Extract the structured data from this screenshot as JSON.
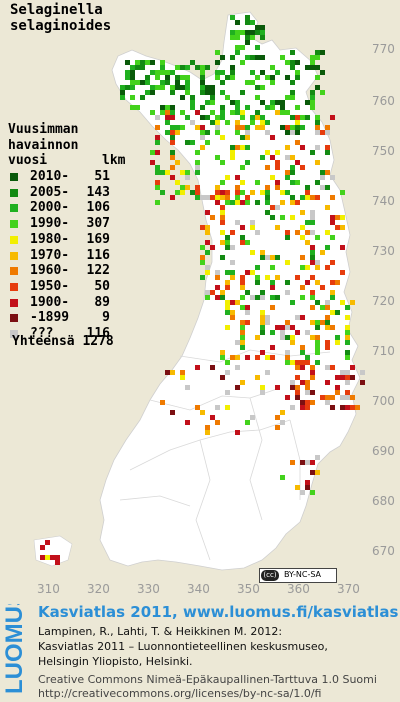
{
  "title": {
    "line1": "Selaginella",
    "line2": "selaginoides"
  },
  "legend": {
    "header": [
      "Vuusimman",
      "havainnon"
    ],
    "header3_left": "vuosi",
    "header3_right": "lkm",
    "rows": [
      {
        "period": "2010-",
        "count": "51",
        "color": "#0a5a0a"
      },
      {
        "period": "2005-",
        "count": "143",
        "color": "#138a13"
      },
      {
        "period": "2000-",
        "count": "106",
        "color": "#20b020"
      },
      {
        "period": "1990-",
        "count": "307",
        "color": "#43d21c"
      },
      {
        "period": "1980-",
        "count": "169",
        "color": "#f2ef00"
      },
      {
        "period": "1970-",
        "count": "116",
        "color": "#f7ba00"
      },
      {
        "period": "1960-",
        "count": "122",
        "color": "#ef7a00"
      },
      {
        "period": "1950-",
        "count": "50",
        "color": "#e63c0d"
      },
      {
        "period": "1900-",
        "count": "89",
        "color": "#c2101a"
      },
      {
        "period": "-1899",
        "count": "9",
        "color": "#7b0f12"
      },
      {
        "period": "???",
        "count": "116",
        "color": "#c8c8c8"
      }
    ],
    "total_label": "Yhteensä",
    "total_value": "1278"
  },
  "y_ticks": [
    "770",
    "760",
    "750",
    "740",
    "730",
    "720",
    "710",
    "700",
    "690",
    "680",
    "670"
  ],
  "x_ticks": [
    "310",
    "320",
    "330",
    "340",
    "350",
    "360",
    "370"
  ],
  "license_badge": "BY-NC-SA",
  "footer": {
    "logo_text": "LUOMUS",
    "headline": "Kasviatlas 2011, www.luomus.fi/kasviatlas",
    "citation_line1": "Lampinen, R., Lahti, T. & Heikkinen M. 2012:",
    "citation_line2": "Kasviatlas 2011 – Luonnontieteellinen keskusmuseo,",
    "citation_line3": "Helsingin Yliopisto, Helsinki.",
    "license_line1": "Creative Commons Nimeä-Epäkaupallinen-Tarttuva 1.0 Suomi",
    "license_line2": "http://creativecommons.org/licenses/by-nc-sa/1.0/fi"
  }
}
